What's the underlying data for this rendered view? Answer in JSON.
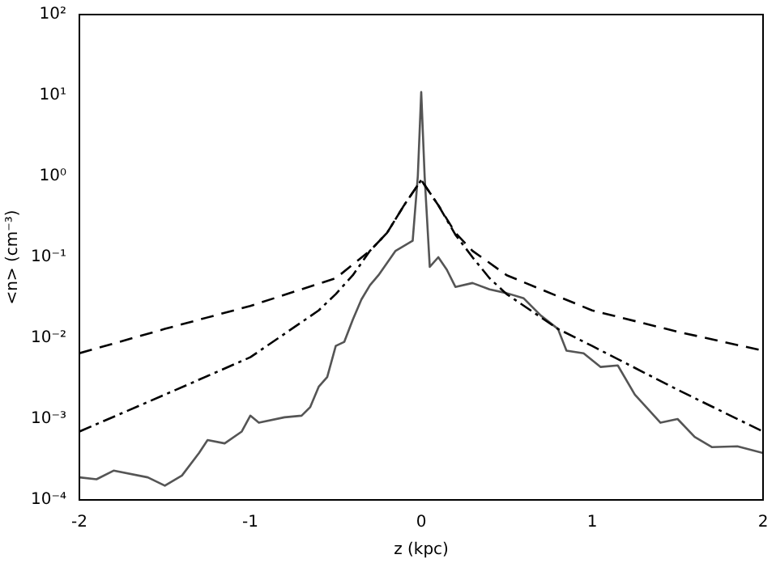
{
  "chart_data": {
    "type": "line",
    "xlabel": "z (kpc)",
    "ylabel": "<n> (cm⁻³)",
    "log": "y",
    "grid": false,
    "legend": false,
    "marker": "none",
    "xlim": [
      -2,
      2
    ],
    "xticks": [
      -2,
      -1,
      0,
      1,
      2
    ],
    "ylim": [
      0.0001,
      100
    ],
    "yticks": [
      {
        "value": 0.0001,
        "label": "10⁻⁴"
      },
      {
        "value": 0.001,
        "label": "10⁻³"
      },
      {
        "value": 0.01,
        "label": "10⁻²"
      },
      {
        "value": 0.1,
        "label": "10⁻¹"
      },
      {
        "value": 1,
        "label": "10⁰"
      },
      {
        "value": 10,
        "label": "10¹"
      },
      {
        "value": 100,
        "label": "10²"
      }
    ],
    "series": [
      {
        "color": "#000000",
        "line_style": "dashed",
        "x": [
          -2,
          -1.5,
          -1,
          -0.5,
          -0.3,
          -0.2,
          -0.1,
          0,
          0.1,
          0.2,
          0.3,
          0.5,
          1,
          1.5,
          2
        ],
        "values": [
          0.0065,
          0.013,
          0.025,
          0.055,
          0.12,
          0.2,
          0.44,
          0.9,
          0.44,
          0.2,
          0.12,
          0.06,
          0.022,
          0.012,
          0.007
        ]
      },
      {
        "color": "#000000",
        "line_style": "dashdot",
        "x": [
          -2,
          -1.5,
          -1,
          -0.6,
          -0.5,
          -0.4,
          -0.3,
          -0.2,
          -0.1,
          0,
          0.1,
          0.2,
          0.3,
          0.4,
          0.5,
          0.8,
          1,
          1.5,
          2
        ],
        "values": [
          0.0007,
          0.002,
          0.0058,
          0.022,
          0.035,
          0.06,
          0.12,
          0.2,
          0.44,
          0.9,
          0.44,
          0.19,
          0.1,
          0.055,
          0.035,
          0.013,
          0.008,
          0.0023,
          0.0007
        ]
      },
      {
        "color": "#555555",
        "line_style": "solid",
        "x": [
          -2,
          -1.9,
          -1.8,
          -1.6,
          -1.5,
          -1.4,
          -1.3,
          -1.25,
          -1.15,
          -1.05,
          -1,
          -0.95,
          -0.8,
          -0.7,
          -0.65,
          -0.6,
          -0.55,
          -0.5,
          -0.45,
          -0.4,
          -0.35,
          -0.3,
          -0.25,
          -0.15,
          -0.05,
          -0.02,
          0,
          0.02,
          0.05,
          0.1,
          0.15,
          0.2,
          0.3,
          0.4,
          0.5,
          0.6,
          0.7,
          0.8,
          0.85,
          0.95,
          1.05,
          1.15,
          1.25,
          1.4,
          1.5,
          1.6,
          1.7,
          1.85,
          2
        ],
        "values": [
          0.00019,
          0.00018,
          0.00023,
          0.00019,
          0.00015,
          0.0002,
          0.00038,
          0.00055,
          0.0005,
          0.0007,
          0.0011,
          0.0009,
          0.00105,
          0.0011,
          0.0014,
          0.0025,
          0.0033,
          0.008,
          0.009,
          0.017,
          0.03,
          0.045,
          0.06,
          0.12,
          0.16,
          1,
          11,
          1,
          0.076,
          0.1,
          0.07,
          0.043,
          0.048,
          0.04,
          0.036,
          0.031,
          0.019,
          0.013,
          0.007,
          0.0065,
          0.0044,
          0.0046,
          0.002,
          0.0009,
          0.001,
          0.0006,
          0.00045,
          0.00046,
          0.00038
        ]
      }
    ]
  }
}
